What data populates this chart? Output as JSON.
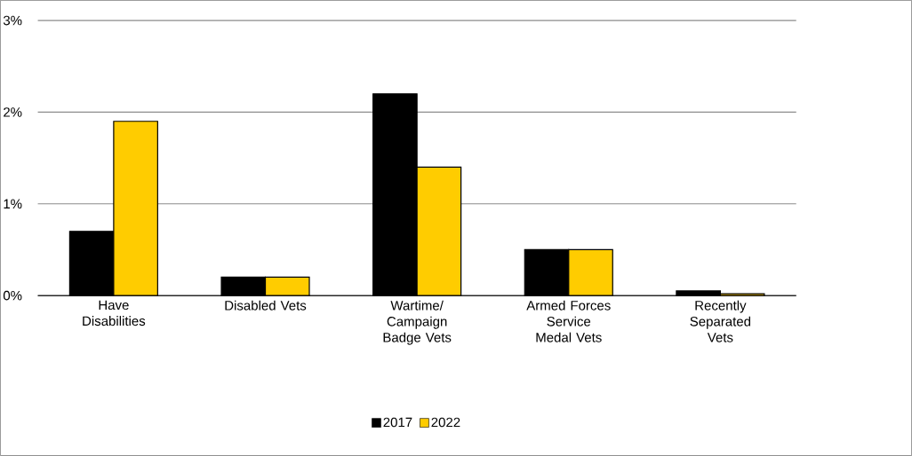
{
  "chart_data": {
    "type": "bar",
    "categories": [
      "Have Disabilities",
      "Disabled Vets",
      "Wartime/Campaign Badge Vets",
      "Armed Forces Service Medal Vets",
      "Recently Separated Vets"
    ],
    "series": [
      {
        "name": "2017",
        "color": "#000000",
        "values": [
          0.7,
          0.2,
          2.2,
          0.5,
          0.05
        ]
      },
      {
        "name": "2022",
        "color": "#ffcc00",
        "values": [
          1.9,
          0.2,
          1.4,
          0.5,
          0.02
        ]
      }
    ],
    "ylim": [
      0,
      3
    ],
    "yticks": [
      {
        "value": 0,
        "label": "0%"
      },
      {
        "value": 1,
        "label": "1%"
      },
      {
        "value": 2,
        "label": "2%"
      },
      {
        "value": 3,
        "label": "3%"
      }
    ],
    "grid": "y",
    "legend": "bottom"
  }
}
